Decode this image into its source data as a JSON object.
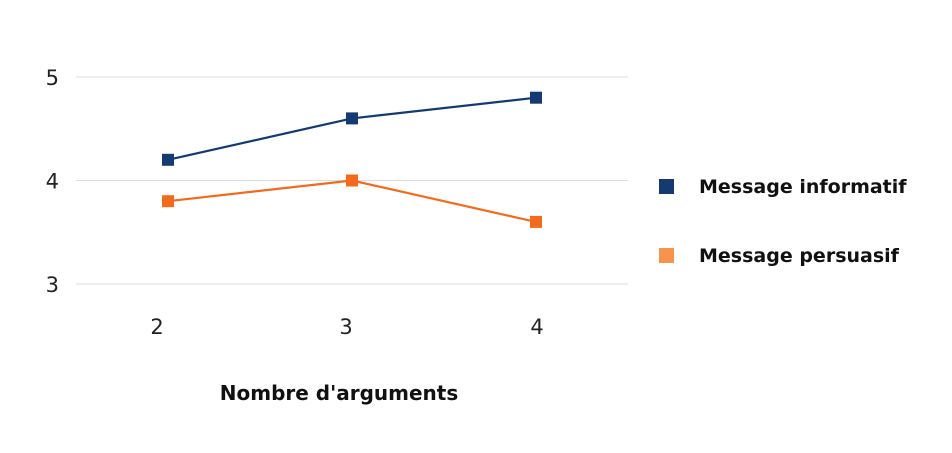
{
  "chart_data": {
    "type": "line",
    "title": "",
    "xlabel": "Nombre d'arguments",
    "ylabel": "",
    "x": [
      2,
      3,
      4
    ],
    "x_tick_labels": [
      "2",
      "3",
      "4"
    ],
    "ylim": [
      3,
      5
    ],
    "y_ticks": [
      3,
      4,
      5
    ],
    "y_tick_labels": [
      "3",
      "4",
      "5"
    ],
    "grid": true,
    "legend_position": "right",
    "series": [
      {
        "name": "Message informatif",
        "values": [
          4.2,
          4.6,
          4.8
        ],
        "color": "#153a72",
        "marker": "square"
      },
      {
        "name": "Message persuasif",
        "values": [
          3.8,
          4.0,
          3.6
        ],
        "color": "#f26b1d",
        "legend_color": "#f7934c",
        "marker": "square"
      }
    ]
  }
}
